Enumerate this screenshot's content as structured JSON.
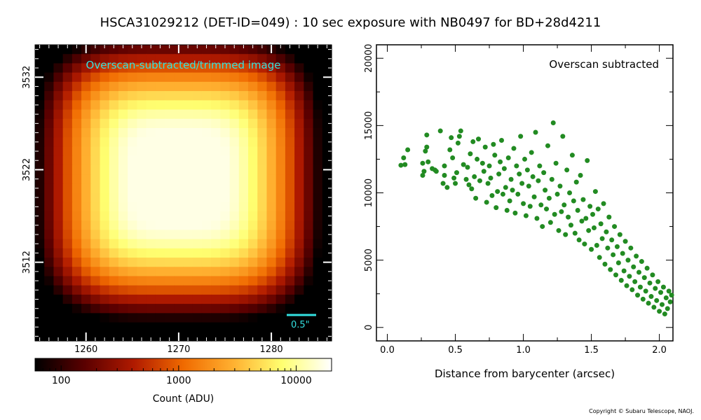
{
  "title": "HSCA31029212 (DET-ID=049) :  10 sec exposure with NB0497 for BD+28d4211",
  "copyright": "Copyright © Subaru Telescope, NAOJ.",
  "colors": {
    "scatter_points": "#228b22",
    "overlay_text": "#33e0e0",
    "scale_bar": "#33e0e0",
    "colormap_stops": [
      "#000000",
      "#5a0000",
      "#b01a00",
      "#f06a00",
      "#ffb030",
      "#ffff70",
      "#ffffff"
    ]
  },
  "chart_data": [
    {
      "type": "heatmap",
      "overlay_text": "Overscan-subtracted/trimmed image",
      "scale_label": "0.5\"",
      "x_ticks": [
        1260,
        1270,
        1280
      ],
      "y_ticks": [
        3512,
        3522,
        3532
      ],
      "xlim": [
        1254.5,
        1286.5
      ],
      "ylim": [
        3503.5,
        3535.5
      ],
      "colormap": "afmhot",
      "colorbar": {
        "label": "Count (ADU)",
        "scale": "log",
        "range": [
          60,
          20000
        ],
        "ticks": [
          100,
          1000,
          10000
        ]
      },
      "peak_center": [
        1270,
        3521
      ]
    },
    {
      "type": "scatter",
      "annotation": "Overscan subtracted",
      "xlabel": "Distance from barycenter (arcsec)",
      "ylabel": "",
      "xlim": [
        -0.08,
        2.1
      ],
      "ylim": [
        -1000,
        21000
      ],
      "x_ticks": [
        0.0,
        0.5,
        1.0,
        1.5,
        2.0
      ],
      "y_ticks": [
        0,
        5000,
        10000,
        15000,
        20000
      ],
      "series": [
        {
          "points": [
            [
              0.1,
              12050
            ],
            [
              0.13,
              12100
            ],
            [
              0.12,
              12600
            ],
            [
              0.15,
              13200
            ],
            [
              0.26,
              11300
            ],
            [
              0.26,
              12200
            ],
            [
              0.27,
              11600
            ],
            [
              0.28,
              13100
            ],
            [
              0.29,
              13400
            ],
            [
              0.29,
              14300
            ],
            [
              0.3,
              12300
            ],
            [
              0.33,
              11800
            ],
            [
              0.35,
              11700
            ],
            [
              0.36,
              11600
            ],
            [
              0.39,
              14600
            ],
            [
              0.41,
              10700
            ],
            [
              0.42,
              11300
            ],
            [
              0.42,
              12000
            ],
            [
              0.44,
              10400
            ],
            [
              0.46,
              13200
            ],
            [
              0.47,
              14100
            ],
            [
              0.48,
              12600
            ],
            [
              0.49,
              11100
            ],
            [
              0.5,
              10700
            ],
            [
              0.51,
              11500
            ],
            [
              0.52,
              13700
            ],
            [
              0.53,
              14200
            ],
            [
              0.54,
              14600
            ],
            [
              0.56,
              12100
            ],
            [
              0.58,
              11000
            ],
            [
              0.59,
              11900
            ],
            [
              0.6,
              10600
            ],
            [
              0.61,
              12900
            ],
            [
              0.62,
              10300
            ],
            [
              0.63,
              13800
            ],
            [
              0.64,
              11200
            ],
            [
              0.65,
              9600
            ],
            [
              0.66,
              12500
            ],
            [
              0.67,
              14000
            ],
            [
              0.68,
              10900
            ],
            [
              0.7,
              12200
            ],
            [
              0.71,
              11600
            ],
            [
              0.72,
              13400
            ],
            [
              0.73,
              9300
            ],
            [
              0.74,
              10700
            ],
            [
              0.75,
              12000
            ],
            [
              0.76,
              11100
            ],
            [
              0.77,
              9800
            ],
            [
              0.78,
              13600
            ],
            [
              0.79,
              12800
            ],
            [
              0.8,
              8900
            ],
            [
              0.81,
              10100
            ],
            [
              0.82,
              11400
            ],
            [
              0.83,
              12300
            ],
            [
              0.84,
              13900
            ],
            [
              0.85,
              9900
            ],
            [
              0.86,
              11800
            ],
            [
              0.87,
              10400
            ],
            [
              0.88,
              8700
            ],
            [
              0.89,
              12600
            ],
            [
              0.9,
              9400
            ],
            [
              0.91,
              11000
            ],
            [
              0.92,
              10200
            ],
            [
              0.93,
              13300
            ],
            [
              0.94,
              8500
            ],
            [
              0.95,
              12000
            ],
            [
              0.96,
              9900
            ],
            [
              0.97,
              11400
            ],
            [
              0.98,
              14200
            ],
            [
              0.99,
              10700
            ],
            [
              1.0,
              9200
            ],
            [
              1.01,
              12500
            ],
            [
              1.02,
              8300
            ],
            [
              1.03,
              11700
            ],
            [
              1.04,
              10500
            ],
            [
              1.05,
              9000
            ],
            [
              1.06,
              13000
            ],
            [
              1.07,
              11200
            ],
            [
              1.08,
              9700
            ],
            [
              1.09,
              14500
            ],
            [
              1.1,
              8100
            ],
            [
              1.11,
              10900
            ],
            [
              1.12,
              12000
            ],
            [
              1.13,
              9100
            ],
            [
              1.14,
              7500
            ],
            [
              1.15,
              11500
            ],
            [
              1.16,
              10200
            ],
            [
              1.17,
              8800
            ],
            [
              1.18,
              13500
            ],
            [
              1.19,
              9600
            ],
            [
              1.2,
              7800
            ],
            [
              1.21,
              11000
            ],
            [
              1.22,
              15200
            ],
            [
              1.23,
              8400
            ],
            [
              1.24,
              12200
            ],
            [
              1.25,
              9900
            ],
            [
              1.26,
              7200
            ],
            [
              1.27,
              10500
            ],
            [
              1.28,
              8600
            ],
            [
              1.29,
              14200
            ],
            [
              1.3,
              9100
            ],
            [
              1.31,
              6900
            ],
            [
              1.32,
              11700
            ],
            [
              1.33,
              8200
            ],
            [
              1.34,
              10000
            ],
            [
              1.35,
              7600
            ],
            [
              1.36,
              12800
            ],
            [
              1.37,
              9400
            ],
            [
              1.38,
              7000
            ],
            [
              1.39,
              10800
            ],
            [
              1.4,
              8700
            ],
            [
              1.41,
              6500
            ],
            [
              1.42,
              11300
            ],
            [
              1.43,
              7900
            ],
            [
              1.44,
              9500
            ],
            [
              1.45,
              6200
            ],
            [
              1.46,
              8100
            ],
            [
              1.47,
              12400
            ],
            [
              1.48,
              7200
            ],
            [
              1.49,
              9000
            ],
            [
              1.5,
              5800
            ],
            [
              1.51,
              8400
            ],
            [
              1.52,
              7400
            ],
            [
              1.53,
              10100
            ],
            [
              1.54,
              6100
            ],
            [
              1.55,
              8800
            ],
            [
              1.56,
              5200
            ],
            [
              1.57,
              7700
            ],
            [
              1.58,
              6600
            ],
            [
              1.59,
              9200
            ],
            [
              1.6,
              4700
            ],
            [
              1.61,
              7100
            ],
            [
              1.62,
              5900
            ],
            [
              1.63,
              8200
            ],
            [
              1.64,
              4300
            ],
            [
              1.65,
              6500
            ],
            [
              1.66,
              5400
            ],
            [
              1.67,
              7500
            ],
            [
              1.68,
              3900
            ],
            [
              1.69,
              6000
            ],
            [
              1.7,
              4800
            ],
            [
              1.71,
              6900
            ],
            [
              1.72,
              3500
            ],
            [
              1.73,
              5500
            ],
            [
              1.74,
              4200
            ],
            [
              1.75,
              6400
            ],
            [
              1.76,
              3100
            ],
            [
              1.77,
              5000
            ],
            [
              1.78,
              3800
            ],
            [
              1.79,
              5900
            ],
            [
              1.8,
              2800
            ],
            [
              1.81,
              4500
            ],
            [
              1.82,
              3400
            ],
            [
              1.83,
              5300
            ],
            [
              1.84,
              2400
            ],
            [
              1.85,
              4100
            ],
            [
              1.86,
              3000
            ],
            [
              1.87,
              4900
            ],
            [
              1.88,
              2100
            ],
            [
              1.89,
              3700
            ],
            [
              1.9,
              2700
            ],
            [
              1.91,
              4400
            ],
            [
              1.92,
              1800
            ],
            [
              1.93,
              3300
            ],
            [
              1.94,
              2300
            ],
            [
              1.95,
              3900
            ],
            [
              1.96,
              1500
            ],
            [
              1.97,
              2900
            ],
            [
              1.98,
              2000
            ],
            [
              1.99,
              3400
            ],
            [
              2.0,
              1200
            ],
            [
              2.01,
              2600
            ],
            [
              2.02,
              1700
            ],
            [
              2.03,
              3000
            ],
            [
              2.04,
              1000
            ],
            [
              2.05,
              2200
            ],
            [
              2.06,
              1400
            ],
            [
              2.07,
              2700
            ],
            [
              2.08,
              1900
            ],
            [
              2.09,
              2400
            ]
          ]
        }
      ]
    }
  ]
}
